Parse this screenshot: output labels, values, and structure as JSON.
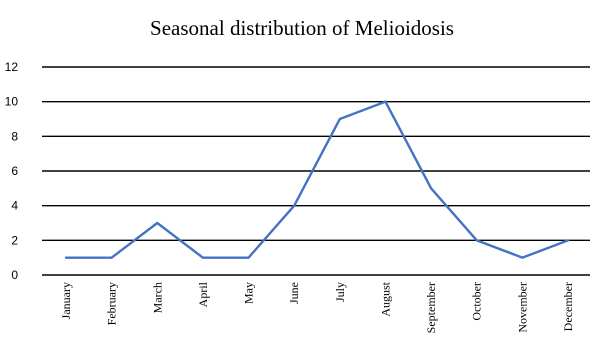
{
  "chart_data": {
    "type": "line",
    "title": "Seasonal distribution of Melioidosis",
    "xlabel": "",
    "ylabel": "",
    "categories": [
      "January",
      "February",
      "March",
      "April",
      "May",
      "June",
      "July",
      "August",
      "September",
      "October",
      "November",
      "December"
    ],
    "series": [
      {
        "values": [
          1,
          1,
          3,
          1,
          1,
          4,
          9,
          10,
          5,
          2,
          1,
          2
        ],
        "color": "#4472C4"
      }
    ],
    "ylim": [
      0,
      12
    ],
    "yticks": [
      0,
      2,
      4,
      6,
      8,
      10,
      12
    ],
    "grid": true,
    "legend": "none"
  }
}
